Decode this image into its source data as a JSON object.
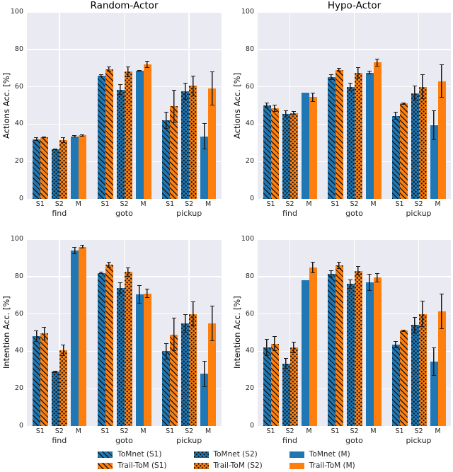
{
  "figure": {
    "background": "#ffffff",
    "panel_background": "#eaeaf2",
    "grid_color": "#ffffff",
    "text_color": "#262626",
    "blue": "#1f77b4",
    "orange": "#ff7f0e"
  },
  "legend": {
    "items": [
      {
        "label": "ToMnet (S1)",
        "color": "#1f77b4",
        "hatch": "diagonal"
      },
      {
        "label": "Trail-ToM (S1)",
        "color": "#ff7f0e",
        "hatch": "diagonal"
      },
      {
        "label": "ToMnet (S2)",
        "color": "#1f77b4",
        "hatch": "dots"
      },
      {
        "label": "Trail-ToM (S2)",
        "color": "#ff7f0e",
        "hatch": "dots"
      },
      {
        "label": "ToMnet (M)",
        "color": "#1f77b4",
        "hatch": "solid"
      },
      {
        "label": "Trail-ToM (M)",
        "color": "#ff7f0e",
        "hatch": "solid"
      }
    ]
  },
  "chart_data": [
    {
      "type": "bar",
      "position": "top-left",
      "title": "Random-Actor",
      "ylabel": "Actions Acc. [%]",
      "ylim": [
        0,
        100
      ],
      "yticks": [
        0,
        20,
        40,
        60,
        80,
        100
      ],
      "grid": true,
      "groups": [
        "find",
        "goto",
        "pickup"
      ],
      "subticks": [
        "S1",
        "S2",
        "M"
      ],
      "series": [
        {
          "name": "ToMnet (S1)",
          "subtick": "S1",
          "color": "#1f77b4",
          "hatch": "diagonal",
          "values": [
            32,
            66,
            42
          ],
          "errors": [
            1,
            0.5,
            4.5
          ]
        },
        {
          "name": "Trail-ToM (S1)",
          "subtick": "S1",
          "color": "#ff7f0e",
          "hatch": "diagonal",
          "values": [
            33,
            69.5,
            49.5
          ],
          "errors": [
            0.5,
            1.5,
            9
          ]
        },
        {
          "name": "ToMnet (S2)",
          "subtick": "S2",
          "color": "#1f77b4",
          "hatch": "dots",
          "values": [
            26.5,
            58.5,
            57.5
          ],
          "errors": [
            0.5,
            3,
            4.5
          ]
        },
        {
          "name": "Trail-ToM (S2)",
          "subtick": "S2",
          "color": "#ff7f0e",
          "hatch": "dots",
          "values": [
            31.5,
            68,
            60.5
          ],
          "errors": [
            1.5,
            3,
            5.5
          ]
        },
        {
          "name": "ToMnet (M)",
          "subtick": "M",
          "color": "#1f77b4",
          "hatch": "solid",
          "values": [
            33.5,
            68.5,
            33.5
          ],
          "errors": [
            0.5,
            0.5,
            7
          ]
        },
        {
          "name": "Trail-ToM (M)",
          "subtick": "M",
          "color": "#ff7f0e",
          "hatch": "solid",
          "values": [
            34,
            72,
            59
          ],
          "errors": [
            0.5,
            2,
            9
          ]
        }
      ]
    },
    {
      "type": "bar",
      "position": "top-right",
      "title": "Hypo-Actor",
      "ylabel": "Actions Acc. [%]",
      "ylim": [
        0,
        100
      ],
      "yticks": [
        0,
        20,
        40,
        60,
        80,
        100
      ],
      "grid": true,
      "groups": [
        "find",
        "goto",
        "pickup"
      ],
      "subticks": [
        "S1",
        "S2",
        "M"
      ],
      "series": [
        {
          "name": "ToMnet (S1)",
          "subtick": "S1",
          "color": "#1f77b4",
          "hatch": "diagonal",
          "values": [
            50,
            65,
            44.5
          ],
          "errors": [
            1.5,
            1.5,
            2
          ]
        },
        {
          "name": "Trail-ToM (S1)",
          "subtick": "S1",
          "color": "#ff7f0e",
          "hatch": "diagonal",
          "values": [
            48.5,
            69,
            51
          ],
          "errors": [
            2,
            1,
            0.5
          ]
        },
        {
          "name": "ToMnet (S2)",
          "subtick": "S2",
          "color": "#1f77b4",
          "hatch": "dots",
          "values": [
            45.5,
            60,
            56.5
          ],
          "errors": [
            2,
            2,
            4
          ]
        },
        {
          "name": "Trail-ToM (S2)",
          "subtick": "S2",
          "color": "#ff7f0e",
          "hatch": "dots",
          "values": [
            46,
            67.5,
            60
          ],
          "errors": [
            1,
            3,
            6.5
          ]
        },
        {
          "name": "ToMnet (M)",
          "subtick": "M",
          "color": "#1f77b4",
          "hatch": "solid",
          "values": [
            57,
            67.5,
            39.5
          ],
          "errors": [
            0,
            1,
            8
          ]
        },
        {
          "name": "Trail-ToM (M)",
          "subtick": "M",
          "color": "#ff7f0e",
          "hatch": "solid",
          "values": [
            54.5,
            73,
            63
          ],
          "errors": [
            2.5,
            2,
            9
          ]
        }
      ]
    },
    {
      "type": "bar",
      "position": "bottom-left",
      "title": "",
      "ylabel": "Intention Acc. [%]",
      "ylim": [
        0,
        100
      ],
      "yticks": [
        0,
        20,
        40,
        60,
        80,
        100
      ],
      "grid": true,
      "groups": [
        "find",
        "goto",
        "pickup"
      ],
      "subticks": [
        "S1",
        "S2",
        "M"
      ],
      "series": [
        {
          "name": "ToMnet (S1)",
          "subtick": "S1",
          "color": "#1f77b4",
          "hatch": "diagonal",
          "values": [
            48,
            82,
            40
          ],
          "errors": [
            3,
            0.5,
            4.5
          ]
        },
        {
          "name": "Trail-ToM (S1)",
          "subtick": "S1",
          "color": "#ff7f0e",
          "hatch": "diagonal",
          "values": [
            49.5,
            86.5,
            49
          ],
          "errors": [
            3.5,
            1.5,
            9
          ]
        },
        {
          "name": "ToMnet (S2)",
          "subtick": "S2",
          "color": "#1f77b4",
          "hatch": "dots",
          "values": [
            29,
            74,
            55
          ],
          "errors": [
            0.5,
            3,
            5
          ]
        },
        {
          "name": "Trail-ToM (S2)",
          "subtick": "S2",
          "color": "#ff7f0e",
          "hatch": "dots",
          "values": [
            40.5,
            82.5,
            60
          ],
          "errors": [
            3,
            2.5,
            6.5
          ]
        },
        {
          "name": "ToMnet (M)",
          "subtick": "M",
          "color": "#1f77b4",
          "hatch": "solid",
          "values": [
            94,
            70.5,
            28
          ],
          "errors": [
            2,
            5,
            7
          ]
        },
        {
          "name": "Trail-ToM (M)",
          "subtick": "M",
          "color": "#ff7f0e",
          "hatch": "solid",
          "values": [
            96,
            71,
            55
          ],
          "errors": [
            1,
            2.5,
            9.5
          ]
        }
      ]
    },
    {
      "type": "bar",
      "position": "bottom-right",
      "title": "",
      "ylabel": "Intention Acc. [%]",
      "ylim": [
        0,
        100
      ],
      "yticks": [
        0,
        20,
        40,
        60,
        80,
        100
      ],
      "grid": true,
      "groups": [
        "find",
        "goto",
        "pickup"
      ],
      "subticks": [
        "S1",
        "S2",
        "M"
      ],
      "series": [
        {
          "name": "ToMnet (S1)",
          "subtick": "S1",
          "color": "#1f77b4",
          "hatch": "diagonal",
          "values": [
            42,
            81.5,
            43.5
          ],
          "errors": [
            4.5,
            2,
            2
          ]
        },
        {
          "name": "Trail-ToM (S1)",
          "subtick": "S1",
          "color": "#ff7f0e",
          "hatch": "diagonal",
          "values": [
            44,
            86,
            51
          ],
          "errors": [
            4,
            2,
            0.5
          ]
        },
        {
          "name": "ToMnet (S2)",
          "subtick": "S2",
          "color": "#1f77b4",
          "hatch": "dots",
          "values": [
            33.5,
            76,
            54
          ],
          "errors": [
            3,
            2.5,
            4.5
          ]
        },
        {
          "name": "Trail-ToM (S2)",
          "subtick": "S2",
          "color": "#ff7f0e",
          "hatch": "dots",
          "values": [
            42,
            83,
            60
          ],
          "errors": [
            3,
            2.5,
            7
          ]
        },
        {
          "name": "ToMnet (M)",
          "subtick": "M",
          "color": "#1f77b4",
          "hatch": "solid",
          "values": [
            78,
            77,
            34.5
          ],
          "errors": [
            0,
            4.5,
            7.5
          ]
        },
        {
          "name": "Trail-ToM (M)",
          "subtick": "M",
          "color": "#ff7f0e",
          "hatch": "solid",
          "values": [
            85,
            79.5,
            61.5
          ],
          "errors": [
            3,
            2.5,
            9.5
          ]
        }
      ]
    }
  ]
}
